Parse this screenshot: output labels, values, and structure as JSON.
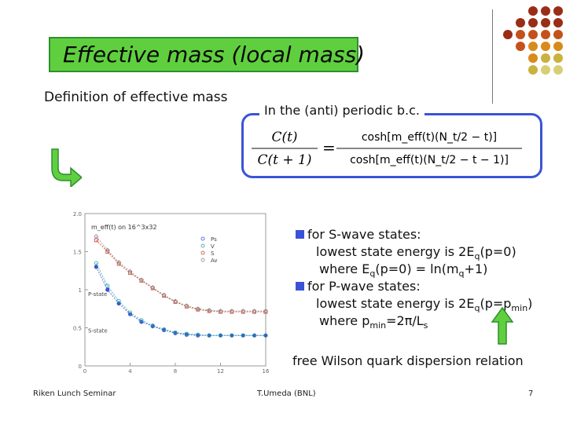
{
  "slide": {
    "title": "Effective mass (local mass)",
    "definition_heading": "Definition of effective mass",
    "formula_label": "In the (anti) periodic b.c.",
    "bullets": [
      {
        "head": "for S-wave states:",
        "line1": "lowest state energy is 2E",
        "line1_sub": "q",
        "line1_end": "(p=0)",
        "line2": "where E",
        "line2_sub": "q",
        "line2_mid": "(p=0) = ln(m",
        "line2_sub2": "q",
        "line2_end": "+1)"
      },
      {
        "head": "for P-wave states:",
        "line1": "lowest state energy is 2E",
        "line1_sub": "q",
        "line1_end": "(p=p",
        "line1_sub2": "min",
        "line1_end2": ")",
        "line2": "where p",
        "line2_sub": "min",
        "line2_mid": "=2π/L",
        "line2_sub2": "s"
      }
    ],
    "free_note": "free Wilson quark dispersion relation",
    "footer_left": "Riken Lunch Seminar",
    "footer_center": "T.Umeda (BNL)",
    "page_number": "7"
  },
  "formula": {
    "lhs_num": "C(t)",
    "lhs_den": "C(t + 1)",
    "eq": "=",
    "rhs_num": "cosh[m_eff(t)(N_t/2 − t)]",
    "rhs_den": "cosh[m_eff(t)(N_t/2 − t − 1)]"
  },
  "chart_data": {
    "type": "scatter",
    "title": "m_eff(t) on 16^3x32",
    "xlim": [
      0,
      16
    ],
    "ylim": [
      0,
      2.0
    ],
    "x_ticks": [
      "0",
      "4",
      "8",
      "12",
      "16"
    ],
    "y_ticks": [
      "0",
      "0.5",
      "1",
      "1.5",
      "2.0"
    ],
    "legend": [
      "Ps",
      "V",
      "S",
      "Av"
    ],
    "annotations": [
      "P-state",
      "S-state"
    ],
    "series": [
      {
        "name": "Ps",
        "x": [
          1,
          2,
          3,
          4,
          5,
          6,
          7,
          8,
          9,
          10,
          11,
          12,
          13,
          14,
          15,
          16
        ],
        "values": [
          1.3,
          1.0,
          0.82,
          0.68,
          0.58,
          0.52,
          0.47,
          0.43,
          0.41,
          0.4,
          0.4,
          0.4,
          0.4,
          0.4,
          0.4,
          0.4
        ]
      },
      {
        "name": "V",
        "x": [
          1,
          2,
          3,
          4,
          5,
          6,
          7,
          8,
          9,
          10,
          11,
          12,
          13,
          14,
          15,
          16
        ],
        "values": [
          1.35,
          1.05,
          0.85,
          0.7,
          0.6,
          0.53,
          0.48,
          0.44,
          0.42,
          0.41,
          0.4,
          0.4,
          0.4,
          0.4,
          0.4,
          0.4
        ]
      },
      {
        "name": "S",
        "x": [
          1,
          2,
          3,
          4,
          5,
          6,
          7,
          8,
          9,
          10,
          11,
          12,
          13,
          14,
          15,
          16
        ],
        "values": [
          1.65,
          1.5,
          1.34,
          1.22,
          1.12,
          1.02,
          0.92,
          0.84,
          0.78,
          0.74,
          0.72,
          0.71,
          0.71,
          0.71,
          0.71,
          0.71
        ]
      },
      {
        "name": "Av",
        "x": [
          1,
          2,
          3,
          4,
          5,
          6,
          7,
          8,
          9,
          10,
          11,
          12,
          13,
          14,
          15,
          16
        ],
        "values": [
          1.7,
          1.52,
          1.36,
          1.24,
          1.13,
          1.03,
          0.93,
          0.85,
          0.79,
          0.75,
          0.73,
          0.72,
          0.72,
          0.72,
          0.72,
          0.72
        ]
      }
    ]
  },
  "colors": {
    "title_bg": "#5fcf3f",
    "formula_border": "#3a53d6",
    "bullet": "#3a53d6",
    "dot_palette": [
      "#9a2d17",
      "#c4511c",
      "#d98a1c",
      "#c9b23d",
      "#d8cf74"
    ]
  }
}
